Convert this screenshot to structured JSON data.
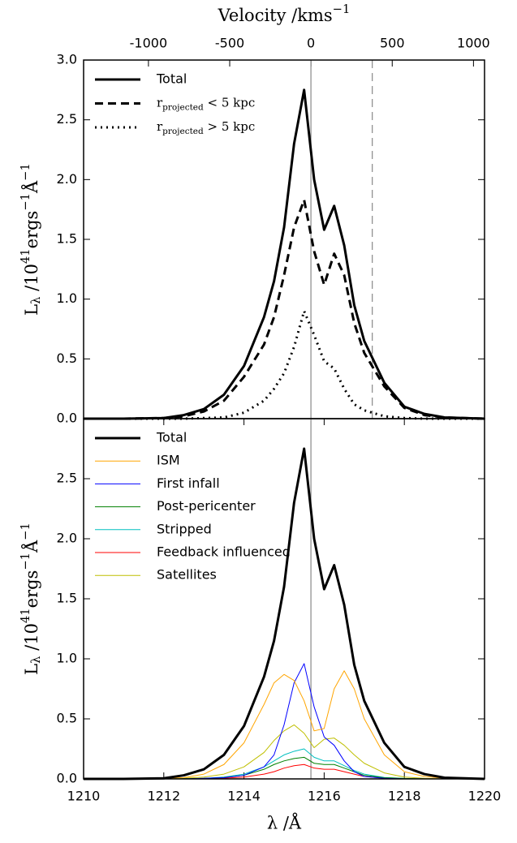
{
  "chart_data": [
    {
      "type": "line",
      "x2label": [
        {
          "text": "Velocity /kms"
        },
        {
          "sup": "−1"
        }
      ],
      "ylabel": [
        {
          "text": "L"
        },
        {
          "sub": "λ"
        },
        {
          "text": " /10"
        },
        {
          "sup": "41"
        },
        {
          "text": "ergs"
        },
        {
          "sup": "−1"
        },
        {
          "text": "Å"
        },
        {
          "sup": "−1"
        }
      ],
      "x": [
        1210,
        1211,
        1212,
        1212.5,
        1213,
        1213.5,
        1214,
        1214.5,
        1214.75,
        1215,
        1215.25,
        1215.5,
        1215.75,
        1216,
        1216.25,
        1216.5,
        1216.75,
        1217,
        1217.5,
        1218,
        1218.5,
        1219,
        1220
      ],
      "xlim": [
        1210,
        1220
      ],
      "x2lim": [
        -1399,
        1068
      ],
      "x2ticks": [
        -1000,
        -500,
        0,
        500,
        1000
      ],
      "ylim": [
        0,
        3
      ],
      "yticks": [
        {
          "value": 0,
          "label": "0.0"
        },
        {
          "value": 0.5,
          "label": "0.5"
        },
        {
          "value": 1,
          "label": "1.0"
        },
        {
          "value": 1.5,
          "label": "1.5"
        },
        {
          "value": 2,
          "label": "2.0"
        },
        {
          "value": 2.5,
          "label": "2.5"
        },
        {
          "value": 3,
          "label": "3.0"
        }
      ],
      "legend": "upper left",
      "vlines": [
        {
          "x": 1215.67,
          "color": "#888888",
          "dash": "solid"
        },
        {
          "x": 1217.2,
          "color": "#888888",
          "dash": "dashed"
        }
      ],
      "series": [
        {
          "name": "Total",
          "color": "#000000",
          "dash": "solid",
          "linewidth": 3,
          "values": [
            0,
            0,
            0.005,
            0.03,
            0.08,
            0.2,
            0.44,
            0.85,
            1.15,
            1.6,
            2.3,
            2.75,
            2.0,
            1.58,
            1.78,
            1.45,
            0.95,
            0.65,
            0.3,
            0.1,
            0.04,
            0.01,
            0
          ]
        },
        {
          "name": [
            {
              "text": "r"
            },
            {
              "sub": "projected"
            },
            {
              "text": " < 5 kpc"
            }
          ],
          "color": "#000000",
          "dash": "dashed",
          "linewidth": 3,
          "values": [
            0,
            0,
            0.005,
            0.02,
            0.06,
            0.15,
            0.35,
            0.62,
            0.85,
            1.2,
            1.6,
            1.83,
            1.4,
            1.12,
            1.38,
            1.2,
            0.8,
            0.55,
            0.27,
            0.09,
            0.03,
            0.01,
            0
          ]
        },
        {
          "name": [
            {
              "text": "r"
            },
            {
              "sub": "projected"
            },
            {
              "text": " > 5 kpc"
            }
          ],
          "color": "#000000",
          "dash": "dotted",
          "linewidth": 3,
          "values": [
            0,
            0,
            0,
            0,
            0.005,
            0.01,
            0.05,
            0.15,
            0.25,
            0.38,
            0.6,
            0.9,
            0.7,
            0.48,
            0.42,
            0.25,
            0.12,
            0.07,
            0.02,
            0.005,
            0,
            0,
            0
          ]
        }
      ]
    },
    {
      "type": "line",
      "xlabel": "λ /Å",
      "ylabel": [
        {
          "text": "L"
        },
        {
          "sub": "λ"
        },
        {
          "text": " /10"
        },
        {
          "sup": "41"
        },
        {
          "text": "ergs"
        },
        {
          "sup": "−1"
        },
        {
          "text": "Å"
        },
        {
          "sup": "−1"
        }
      ],
      "x": [
        1210,
        1211,
        1212,
        1212.5,
        1213,
        1213.5,
        1214,
        1214.5,
        1214.75,
        1215,
        1215.25,
        1215.5,
        1215.75,
        1216,
        1216.25,
        1216.5,
        1216.75,
        1217,
        1217.5,
        1218,
        1218.5,
        1219,
        1220
      ],
      "xlim": [
        1210,
        1220
      ],
      "xticks": [
        1210,
        1212,
        1214,
        1216,
        1218,
        1220
      ],
      "ylim": [
        0,
        3
      ],
      "yticks": [
        {
          "value": 0,
          "label": "0.0"
        },
        {
          "value": 0.5,
          "label": "0.5"
        },
        {
          "value": 1,
          "label": "1.0"
        },
        {
          "value": 1.5,
          "label": "1.5"
        },
        {
          "value": 2,
          "label": "2.0"
        },
        {
          "value": 2.5,
          "label": "2.5"
        }
      ],
      "legend": "upper left",
      "vlines": [
        {
          "x": 1215.67,
          "color": "#888888",
          "dash": "solid"
        }
      ],
      "series": [
        {
          "name": "Total",
          "color": "#000000",
          "dash": "solid",
          "linewidth": 3,
          "values": [
            0,
            0,
            0.005,
            0.03,
            0.08,
            0.2,
            0.44,
            0.85,
            1.15,
            1.6,
            2.3,
            2.75,
            2.0,
            1.58,
            1.78,
            1.45,
            0.95,
            0.65,
            0.3,
            0.1,
            0.04,
            0.01,
            0
          ]
        },
        {
          "name": "ISM",
          "color": "#ffa500",
          "dash": "solid",
          "linewidth": 1,
          "values": [
            0,
            0,
            0.005,
            0.01,
            0.04,
            0.12,
            0.3,
            0.62,
            0.8,
            0.87,
            0.82,
            0.65,
            0.4,
            0.42,
            0.75,
            0.9,
            0.75,
            0.5,
            0.2,
            0.06,
            0.02,
            0.005,
            0
          ]
        },
        {
          "name": "First infall",
          "color": "#0000ff",
          "dash": "solid",
          "linewidth": 1,
          "values": [
            0,
            0,
            0,
            0,
            0.005,
            0.01,
            0.03,
            0.1,
            0.2,
            0.45,
            0.8,
            0.96,
            0.6,
            0.35,
            0.28,
            0.15,
            0.06,
            0.02,
            0.005,
            0,
            0,
            0,
            0
          ]
        },
        {
          "name": "Post-pericenter",
          "color": "#008000",
          "dash": "solid",
          "linewidth": 1,
          "values": [
            0,
            0,
            0,
            0.002,
            0.004,
            0.012,
            0.03,
            0.08,
            0.12,
            0.15,
            0.17,
            0.18,
            0.13,
            0.12,
            0.12,
            0.09,
            0.06,
            0.03,
            0.01,
            0.003,
            0,
            0,
            0
          ]
        },
        {
          "name": "Stripped",
          "color": "#00bfbf",
          "dash": "solid",
          "linewidth": 1,
          "values": [
            0,
            0,
            0,
            0.002,
            0.005,
            0.015,
            0.04,
            0.1,
            0.15,
            0.2,
            0.23,
            0.25,
            0.18,
            0.15,
            0.15,
            0.11,
            0.07,
            0.04,
            0.012,
            0.004,
            0,
            0,
            0
          ]
        },
        {
          "name": "Feedback influenced",
          "color": "#ff0000",
          "dash": "solid",
          "linewidth": 1,
          "values": [
            0,
            0,
            0,
            0,
            0.002,
            0.006,
            0.015,
            0.04,
            0.06,
            0.09,
            0.11,
            0.12,
            0.09,
            0.08,
            0.08,
            0.06,
            0.04,
            0.02,
            0.006,
            0.002,
            0,
            0,
            0
          ]
        },
        {
          "name": "Satellites",
          "color": "#bfbf00",
          "dash": "solid",
          "linewidth": 1,
          "values": [
            0,
            0,
            0.002,
            0.005,
            0.015,
            0.04,
            0.1,
            0.22,
            0.32,
            0.4,
            0.45,
            0.38,
            0.26,
            0.33,
            0.34,
            0.28,
            0.2,
            0.13,
            0.05,
            0.015,
            0.005,
            0,
            0
          ]
        }
      ]
    }
  ]
}
